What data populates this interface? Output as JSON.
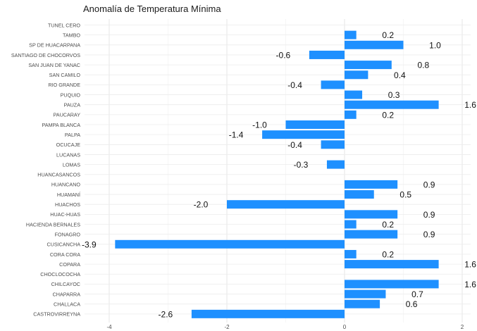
{
  "chart_data": {
    "type": "bar",
    "orientation": "horizontal",
    "title": "Anomalía de Temperatura Mínima",
    "xlabel": "",
    "ylabel": "",
    "xlim": [
      -4.0,
      2.0
    ],
    "x_ticks": [
      "-4",
      "-2",
      "0",
      "2"
    ],
    "grid": true,
    "bar_color": "#1E90FF",
    "categories": [
      "TUNEL CERO",
      "TAMBO",
      "SP DE HUACARPANA",
      "SANTIAGO DE CHOCORVOS",
      "SAN JUAN DE YANAC",
      "SAN CAMILO",
      "RIO GRANDE",
      "PUQUIO",
      "PAUZA",
      "PAUCARAY",
      "PAMPA BLANCA",
      "PALPA",
      "OCUCAJE",
      "LUCANAS",
      "LOMAS",
      "HUANCASANCOS",
      "HUANCANO",
      "HUAMANÍ",
      "HUACHOS",
      "HUAC-HUAS",
      "HACIENDA BERNALES",
      "FONAGRO",
      "CUSICANCHA",
      "CORA CORA",
      "COPARA",
      "CHOCLOCOCHA",
      "CHILCAYOC",
      "CHAPARRA",
      "CHALLACA",
      "CASTROVIRREYNA"
    ],
    "values": [
      null,
      0.2,
      1.0,
      -0.6,
      0.8,
      0.4,
      -0.4,
      0.3,
      1.6,
      0.2,
      -1.0,
      -1.4,
      -0.4,
      null,
      -0.3,
      null,
      0.9,
      0.5,
      -2.0,
      0.9,
      0.2,
      0.9,
      -3.9,
      0.2,
      1.6,
      null,
      1.6,
      0.7,
      0.6,
      -2.6
    ],
    "labels": [
      "",
      "0.2",
      "1.0",
      "-0.6",
      "0.8",
      "0.4",
      "-0.4",
      "0.3",
      "1.6",
      "0.2",
      "-1.0",
      "-1.4",
      "-0.4",
      "",
      "-0.3",
      "",
      "0.9",
      "0.5",
      "-2.0",
      "0.9",
      "0.2",
      "0.9",
      "-3.9",
      "0.2",
      "1.6",
      "",
      "1.6",
      "0.7",
      "0.6",
      "-2.6"
    ]
  }
}
